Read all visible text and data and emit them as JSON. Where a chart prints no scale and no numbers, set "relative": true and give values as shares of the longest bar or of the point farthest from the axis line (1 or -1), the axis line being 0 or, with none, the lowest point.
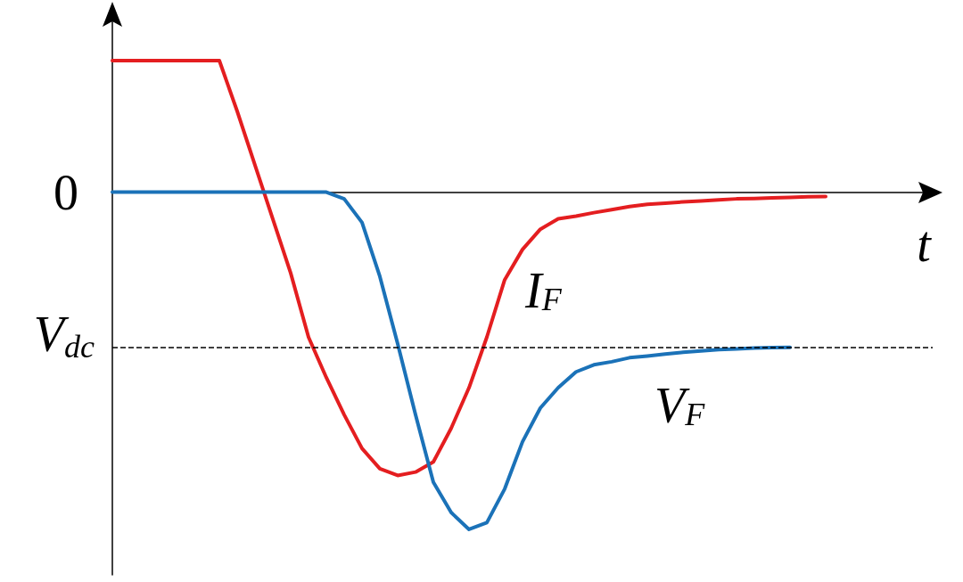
{
  "chart_data": {
    "type": "line",
    "relative": true,
    "xlabel": "t",
    "categories": [
      null,
      null,
      null,
      null,
      null,
      null,
      null,
      null,
      null,
      null,
      null,
      null,
      null,
      null,
      null,
      null,
      null,
      null,
      null,
      null,
      null,
      null,
      null,
      null,
      null,
      null,
      null,
      null,
      null,
      null,
      null,
      null,
      null,
      null,
      null,
      null,
      null,
      null,
      null,
      null,
      null,
      null,
      null,
      null,
      null,
      null,
      null
    ],
    "series": [
      {
        "name": "I$_{F}$",
        "color": "#e41e20",
        "values": [
          0.39,
          0.39,
          0.39,
          0.39,
          0.39,
          0.39,
          0.39,
          0.24,
          0.08,
          -0.08,
          -0.24,
          -0.43,
          -0.55,
          -0.66,
          -0.76,
          -0.82,
          -0.84,
          -0.83,
          -0.8,
          -0.7,
          -0.58,
          -0.43,
          -0.26,
          -0.17,
          -0.11,
          -0.079,
          -0.071,
          -0.061,
          -0.052,
          -0.043,
          -0.036,
          -0.033,
          -0.029,
          -0.026,
          -0.023,
          -0.02,
          -0.019,
          -0.017,
          -0.016,
          -0.014,
          -0.013,
          null,
          null,
          null,
          null,
          null,
          null
        ]
      },
      {
        "name": "V$_{F}$",
        "color": "#1b72b8",
        "values": [
          0,
          0,
          0,
          0,
          0,
          0,
          0,
          0,
          0,
          0,
          0,
          0,
          0,
          -0.02,
          -0.09,
          -0.25,
          -0.45,
          -0.66,
          -0.86,
          -0.95,
          -1,
          -0.98,
          -0.88,
          -0.74,
          -0.64,
          -0.58,
          -0.533,
          -0.512,
          -0.503,
          -0.491,
          -0.486,
          -0.48,
          -0.475,
          -0.471,
          -0.467,
          -0.465,
          -0.462,
          -0.461,
          -0.46,
          null,
          null,
          null,
          null,
          null,
          null,
          null,
          null
        ]
      }
    ],
    "ref_lines": [
      {
        "axis": "y",
        "value": -0.46,
        "label": "V$_{dc}$",
        "color": "#000000",
        "line_style": "dashed"
      }
    ],
    "annotations": [
      "0"
    ],
    "line_style": "solid"
  }
}
